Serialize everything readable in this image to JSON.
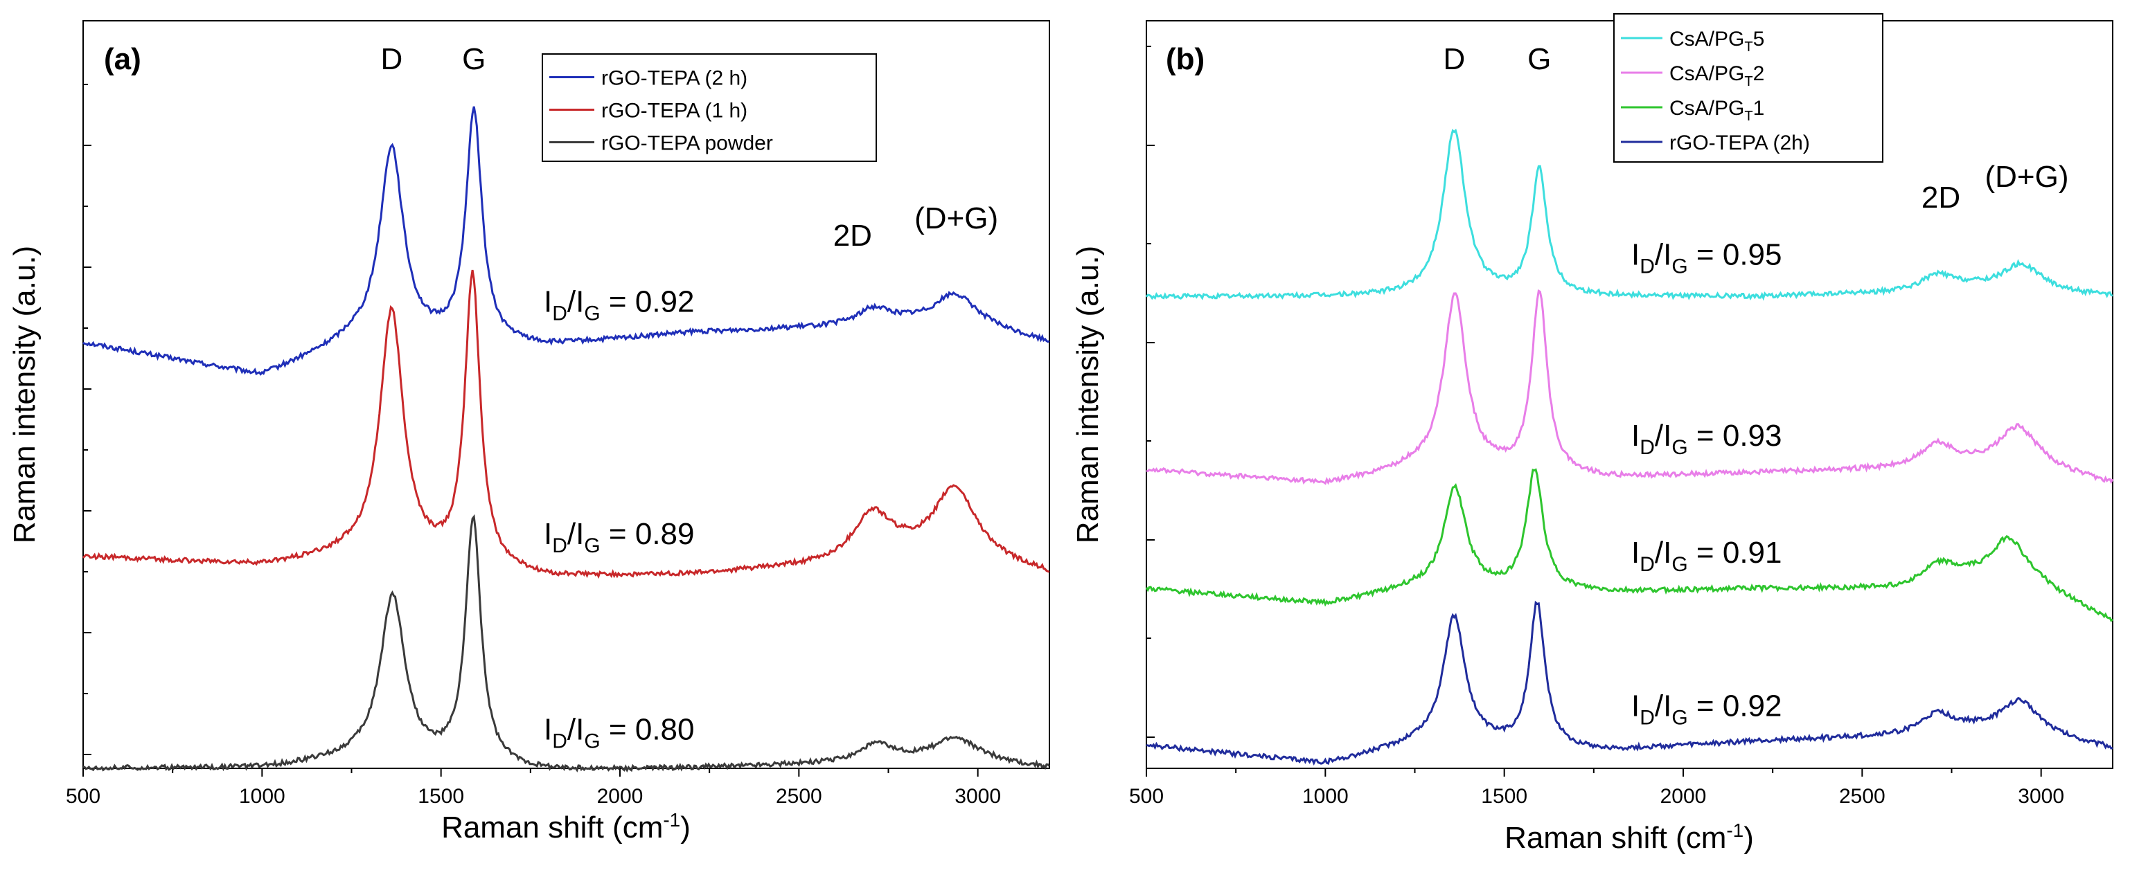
{
  "chart_data": [
    {
      "type": "line",
      "panel_label": "(a)",
      "xlabel": "Raman shift (cm",
      "xlabel_sup": "-1",
      "xlabel_end": ")",
      "ylabel": "Raman intensity (a.u.)",
      "xlim": [
        500,
        3200
      ],
      "ylim": [
        0,
        3.25
      ],
      "xticks": [
        "500",
        "1000",
        "1500",
        "2000",
        "2500",
        "3000"
      ],
      "grid": false,
      "legend_position": "top-right",
      "peak_labels": {
        "D": "D",
        "G": "G",
        "D2": "2D",
        "DG": "(D+G)"
      },
      "series": [
        {
          "name": "rGO-TEPA (2 h)",
          "color": "#1f2fb8",
          "offset": 1.85,
          "scale": 0.85,
          "ratio": "0.92",
          "baseline": [
            [
              500,
              0.0
            ],
            [
              1000,
              -0.17
            ],
            [
              1250,
              0.0
            ],
            [
              1800,
              -0.02
            ],
            [
              2200,
              0.05
            ],
            [
              2600,
              0.08
            ],
            [
              2800,
              0.1
            ],
            [
              3000,
              0.08
            ],
            [
              3200,
              0.0
            ]
          ],
          "peaks": [
            [
              1362,
              1.0,
              40
            ],
            [
              1592,
              1.18,
              27
            ],
            [
              2710,
              0.08,
              55
            ],
            [
              2935,
              0.16,
              70
            ]
          ]
        },
        {
          "name": "rGO-TEPA (1 h)",
          "color": "#c8282a",
          "offset": 0.92,
          "scale": 0.8,
          "ratio": "0.89",
          "baseline": [
            [
              500,
              0.0
            ],
            [
              1000,
              -0.05
            ],
            [
              1250,
              0.0
            ],
            [
              1800,
              -0.12
            ],
            [
              2200,
              -0.1
            ],
            [
              2600,
              -0.05
            ],
            [
              2800,
              0.0
            ],
            [
              3000,
              -0.02
            ],
            [
              3200,
              -0.1
            ]
          ],
          "peaks": [
            [
              1362,
              1.35,
              40
            ],
            [
              1588,
              1.58,
              26
            ],
            [
              2705,
              0.25,
              65
            ],
            [
              2935,
              0.38,
              70
            ]
          ]
        },
        {
          "name": "rGO-TEPA powder",
          "color": "#3a3a3a",
          "offset": 0.0,
          "scale": 0.72,
          "ratio": "0.80",
          "baseline": [
            [
              500,
              0.0
            ],
            [
              1000,
              0.0
            ],
            [
              1250,
              0.05
            ],
            [
              1800,
              -0.02
            ],
            [
              2200,
              0.0
            ],
            [
              2600,
              0.03
            ],
            [
              2800,
              0.05
            ],
            [
              3000,
              0.05
            ],
            [
              3200,
              0.0
            ]
          ],
          "peaks": [
            [
              1365,
              1.0,
              42
            ],
            [
              1590,
              1.48,
              26
            ],
            [
              2715,
              0.1,
              55
            ],
            [
              2935,
              0.13,
              70
            ]
          ]
        }
      ]
    },
    {
      "type": "line",
      "panel_label": "(b)",
      "xlabel": "Raman shift (cm",
      "xlabel_sup": "-1",
      "xlabel_end": ")",
      "ylabel": "Raman intensity (a.u.)",
      "xlim": [
        500,
        3200
      ],
      "ylim": [
        0,
        3.25
      ],
      "xticks": [
        "500",
        "1000",
        "1500",
        "2000",
        "2500",
        "3000"
      ],
      "grid": false,
      "legend_position": "top-right",
      "peak_labels": {
        "D": "D",
        "G": "G",
        "D2": "2D",
        "DG": "(D+G)"
      },
      "series": [
        {
          "name": "CsA/PG",
          "sub": "T",
          "suffix": "5",
          "color": "#3ddede",
          "offset": 2.05,
          "scale": 0.8,
          "ratio": "0.95",
          "baseline": [
            [
              500,
              0.0
            ],
            [
              1000,
              0.0
            ],
            [
              1250,
              0.0
            ],
            [
              1800,
              0.0
            ],
            [
              2200,
              0.0
            ],
            [
              2600,
              0.02
            ],
            [
              2800,
              0.05
            ],
            [
              3000,
              0.03
            ],
            [
              3200,
              0.0
            ]
          ],
          "peaks": [
            [
              1360,
              0.9,
              38
            ],
            [
              1598,
              0.68,
              26
            ],
            [
              2710,
              0.08,
              55
            ],
            [
              2945,
              0.14,
              65
            ]
          ]
        },
        {
          "name": "CsA/PG",
          "sub": "T",
          "suffix": "2",
          "color": "#e87ee8",
          "offset": 1.3,
          "scale": 0.8,
          "ratio": "0.93",
          "baseline": [
            [
              500,
              0.0
            ],
            [
              1000,
              -0.08
            ],
            [
              1250,
              0.0
            ],
            [
              1800,
              -0.05
            ],
            [
              2200,
              -0.02
            ],
            [
              2600,
              0.0
            ],
            [
              2800,
              0.02
            ],
            [
              3000,
              0.0
            ],
            [
              3200,
              -0.08
            ]
          ],
          "peaks": [
            [
              1362,
              0.95,
              38
            ],
            [
              1598,
              0.98,
              26
            ],
            [
              2710,
              0.12,
              55
            ],
            [
              2935,
              0.22,
              65
            ]
          ]
        },
        {
          "name": "CsA/PG",
          "sub": "T",
          "suffix": "1",
          "color": "#2ec52e",
          "offset": 0.78,
          "scale": 0.8,
          "ratio": "0.91",
          "baseline": [
            [
              500,
              0.0
            ],
            [
              1000,
              -0.08
            ],
            [
              1250,
              0.0
            ],
            [
              1800,
              -0.02
            ],
            [
              2200,
              0.0
            ],
            [
              2600,
              0.0
            ],
            [
              2800,
              0.05
            ],
            [
              3000,
              0.0
            ],
            [
              3200,
              -0.18
            ]
          ],
          "peaks": [
            [
              1362,
              0.55,
              38
            ],
            [
              1585,
              0.65,
              28
            ],
            [
              2715,
              0.1,
              55
            ],
            [
              2910,
              0.25,
              60
            ]
          ]
        },
        {
          "name": "rGO-TEPA (2h)",
          "color": "#202c9c",
          "offset": 0.1,
          "scale": 0.8,
          "ratio": "0.92",
          "baseline": [
            [
              500,
              0.0
            ],
            [
              1000,
              -0.1
            ],
            [
              1250,
              0.0
            ],
            [
              1800,
              -0.03
            ],
            [
              2200,
              0.02
            ],
            [
              2600,
              0.05
            ],
            [
              2800,
              0.08
            ],
            [
              3000,
              0.05
            ],
            [
              3200,
              -0.02
            ]
          ],
          "peaks": [
            [
              1360,
              0.7,
              38
            ],
            [
              1592,
              0.78,
              26
            ],
            [
              2710,
              0.1,
              55
            ],
            [
              2940,
              0.18,
              65
            ]
          ]
        }
      ]
    }
  ]
}
